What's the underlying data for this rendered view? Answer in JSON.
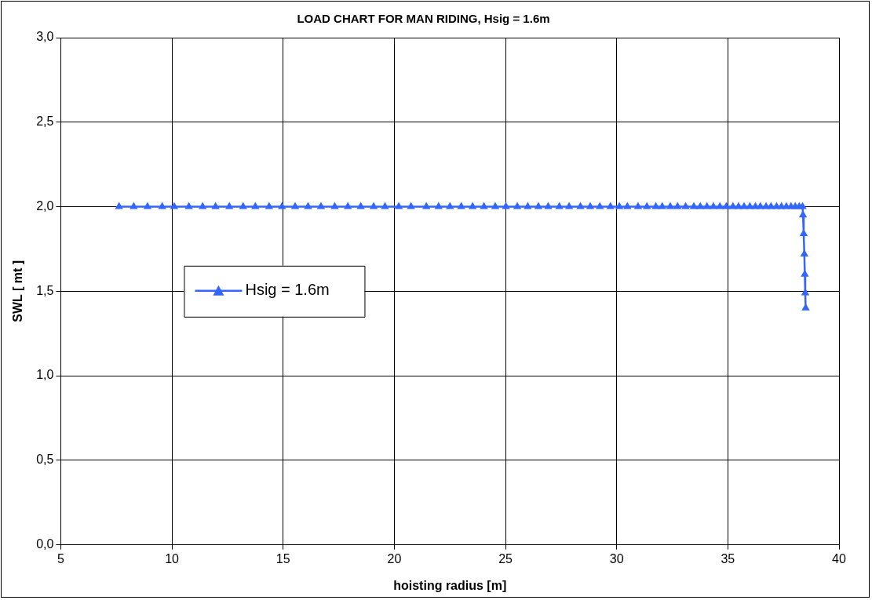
{
  "chart_data": {
    "type": "line",
    "title": "LOAD CHART FOR MAN RIDING, Hsig = 1.6m",
    "xlabel": "hoisting radius [m]",
    "ylabel": "SWL [ mt ]",
    "xlim": [
      5,
      40
    ],
    "xticks": [
      5,
      10,
      15,
      20,
      25,
      30,
      35,
      40
    ],
    "ylim": [
      0,
      3
    ],
    "yticks": [
      {
        "value": 0,
        "label": "0,0"
      },
      {
        "value": 0.5,
        "label": "0,5"
      },
      {
        "value": 1,
        "label": "1,0"
      },
      {
        "value": 1.5,
        "label": "1,5"
      },
      {
        "value": 2,
        "label": "2,0"
      },
      {
        "value": 2.5,
        "label": "2,5"
      },
      {
        "value": 3,
        "label": "3,0"
      }
    ],
    "grid": true,
    "legend": "left",
    "marker": "triangle",
    "line_style": "solid",
    "series": [
      {
        "name": "Hsig = 1.6m",
        "color": "#3366ff",
        "x": [
          7.62,
          8.28,
          8.9,
          9.56,
          10.1,
          10.76,
          11.38,
          11.96,
          12.58,
          13.2,
          13.75,
          14.37,
          14.95,
          15.54,
          16.12,
          16.7,
          17.32,
          17.91,
          18.49,
          19.07,
          19.58,
          20.2,
          20.75,
          21.44,
          21.99,
          22.5,
          23.01,
          23.52,
          24.03,
          24.54,
          25.02,
          25.53,
          26.0,
          26.48,
          26.92,
          27.42,
          27.86,
          28.37,
          28.81,
          29.24,
          29.72,
          30.12,
          30.48,
          30.96,
          31.36,
          31.76,
          32.05,
          32.41,
          32.74,
          33.1,
          33.47,
          33.76,
          34.06,
          34.35,
          34.64,
          34.93,
          35.23,
          35.48,
          35.73,
          35.99,
          36.24,
          36.46,
          36.72,
          36.94,
          37.19,
          37.41,
          37.63,
          37.84,
          38.03,
          38.21,
          38.36,
          38.38,
          38.41,
          38.44,
          38.46,
          38.48,
          38.5
        ],
        "values": [
          2,
          2,
          2,
          2,
          2,
          2,
          2,
          2,
          2,
          2,
          2,
          2,
          2,
          2,
          2,
          2,
          2,
          2,
          2,
          2,
          2,
          2,
          2,
          2,
          2,
          2,
          2,
          2,
          2,
          2,
          2,
          2,
          2,
          2,
          2,
          2,
          2,
          2,
          2,
          2,
          2,
          2,
          2,
          2,
          2,
          2,
          2,
          2,
          2,
          2,
          2,
          2,
          2,
          2,
          2,
          2,
          2,
          2,
          2,
          2,
          2,
          2,
          2,
          2,
          2,
          2,
          2,
          2,
          2,
          2,
          2,
          1.95,
          1.84,
          1.72,
          1.6,
          1.49,
          1.4
        ]
      }
    ]
  }
}
